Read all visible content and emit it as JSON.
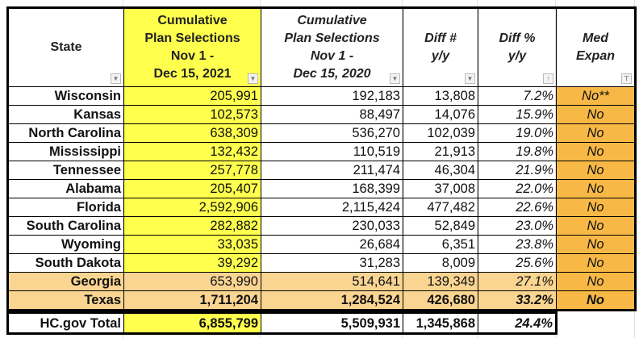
{
  "headers": {
    "state": "State",
    "c2": [
      "Cumulative",
      "Plan Selections",
      "Nov 1 -",
      "Dec 15, 2021"
    ],
    "c3": [
      "Cumulative",
      "Plan Selections",
      "Nov 1 -",
      "Dec 15, 2020"
    ],
    "c4": [
      "Diff #",
      "y/y"
    ],
    "c5": [
      "Diff %",
      "y/y"
    ],
    "c6": [
      "Med",
      "Expan"
    ]
  },
  "rows": [
    {
      "state": "Wisconsin",
      "s2021": "205,991",
      "s2020": "192,183",
      "diff": "13,808",
      "pct": "7.2%",
      "med": "No**"
    },
    {
      "state": "Kansas",
      "s2021": "102,573",
      "s2020": "88,497",
      "diff": "14,076",
      "pct": "15.9%",
      "med": "No"
    },
    {
      "state": "North Carolina",
      "s2021": "638,309",
      "s2020": "536,270",
      "diff": "102,039",
      "pct": "19.0%",
      "med": "No"
    },
    {
      "state": "Mississippi",
      "s2021": "132,432",
      "s2020": "110,519",
      "diff": "21,913",
      "pct": "19.8%",
      "med": "No"
    },
    {
      "state": "Tennessee",
      "s2021": "257,778",
      "s2020": "211,474",
      "diff": "46,304",
      "pct": "21.9%",
      "med": "No"
    },
    {
      "state": "Alabama",
      "s2021": "205,407",
      "s2020": "168,399",
      "diff": "37,008",
      "pct": "22.0%",
      "med": "No"
    },
    {
      "state": "Florida",
      "s2021": "2,592,906",
      "s2020": "2,115,424",
      "diff": "477,482",
      "pct": "22.6%",
      "med": "No"
    },
    {
      "state": "South Carolina",
      "s2021": "282,882",
      "s2020": "230,033",
      "diff": "52,849",
      "pct": "23.0%",
      "med": "No"
    },
    {
      "state": "Wyoming",
      "s2021": "33,035",
      "s2020": "26,684",
      "diff": "6,351",
      "pct": "23.8%",
      "med": "No"
    },
    {
      "state": "South Dakota",
      "s2021": "39,292",
      "s2020": "31,283",
      "diff": "8,009",
      "pct": "25.6%",
      "med": "No"
    },
    {
      "state": "Georgia",
      "s2021": "653,990",
      "s2020": "514,641",
      "diff": "139,349",
      "pct": "27.1%",
      "med": "No"
    },
    {
      "state": "Texas",
      "s2021": "1,711,204",
      "s2020": "1,284,524",
      "diff": "426,680",
      "pct": "33.2%",
      "med": "No"
    }
  ],
  "total": {
    "label": "HC.gov Total",
    "s2021": "6,855,799",
    "s2020": "5,509,931",
    "diff": "1,345,868",
    "pct": "24.4%"
  },
  "colors": {
    "highlight_yellow": "#ffff4d",
    "med_orange": "#f7b846",
    "row_highlight": "#fad592"
  },
  "icons": {
    "filter": "dropdown-arrow-icon",
    "sort": "sort-icon",
    "filtered": "filter-active-icon"
  }
}
